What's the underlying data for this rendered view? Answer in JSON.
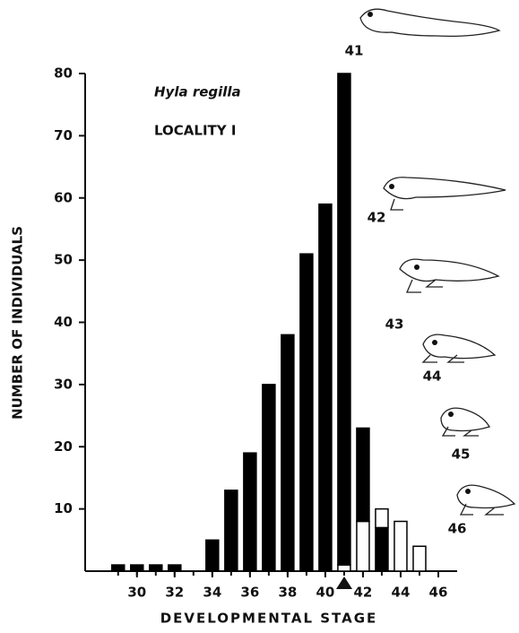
{
  "chart_data": {
    "type": "bar",
    "y_label": "NUMBER OF INDIVIDUALS",
    "x_label": "DEVELOPMENTAL STAGE",
    "species": "Hyla regilla",
    "locality": "LOCALITY I",
    "annotations": [
      "41",
      "42",
      "43",
      "44",
      "45",
      "46"
    ],
    "x": [
      29,
      30,
      31,
      32,
      33,
      34,
      35,
      36,
      37,
      38,
      39,
      40,
      41,
      42,
      43,
      44,
      45
    ],
    "series": [
      {
        "color": "#000000",
        "values": [
          1,
          1,
          1,
          1,
          0,
          5,
          13,
          19,
          30,
          38,
          51,
          59,
          0,
          0,
          7,
          0,
          0
        ]
      },
      {
        "color": "#ffffff",
        "values": [
          0,
          0,
          0,
          0,
          0,
          0,
          0,
          0,
          0,
          0,
          0,
          0,
          1,
          8,
          3,
          8,
          4
        ]
      },
      {
        "color": "#000000",
        "values": [
          0,
          0,
          0,
          0,
          0,
          0,
          0,
          0,
          0,
          0,
          0,
          0,
          79,
          15,
          0,
          0,
          0
        ]
      }
    ],
    "stacked": true,
    "xlim": [
      27.25,
      47
    ],
    "xticks": [
      30,
      32,
      34,
      36,
      38,
      40,
      42,
      44,
      46
    ],
    "ylim": [
      0,
      80
    ],
    "yticks": [
      10,
      20,
      30,
      40,
      50,
      60,
      70,
      80
    ]
  }
}
